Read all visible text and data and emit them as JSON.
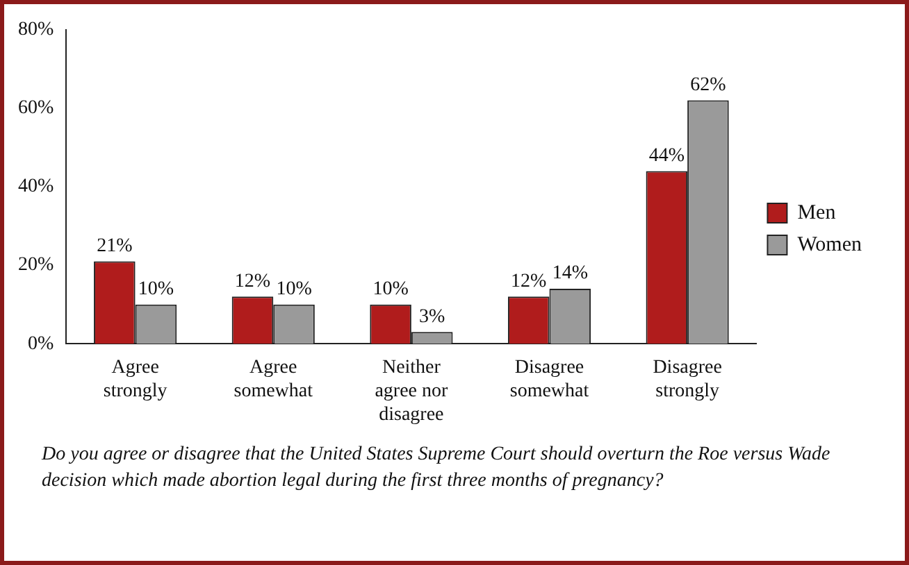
{
  "chart_data": {
    "type": "bar",
    "categories": [
      "Agree strongly",
      "Agree somewhat",
      "Neither agree nor disagree",
      "Disagree somewhat",
      "Disagree strongly"
    ],
    "series": [
      {
        "name": "Men",
        "color": "#b01c1c",
        "values": [
          21,
          12,
          10,
          12,
          44
        ],
        "value_labels": [
          "21%",
          "12%",
          "10%",
          "12%",
          "44%"
        ]
      },
      {
        "name": "Women",
        "color": "#9a9a9a",
        "values": [
          10,
          10,
          3,
          14,
          62
        ],
        "value_labels": [
          "10%",
          "10%",
          "3%",
          "14%",
          "62%"
        ]
      }
    ],
    "ylim": [
      0,
      80
    ],
    "yticks": [
      {
        "value": 0,
        "label": "0%"
      },
      {
        "value": 20,
        "label": "20%"
      },
      {
        "value": 40,
        "label": "40%"
      },
      {
        "value": 60,
        "label": "60%"
      },
      {
        "value": 80,
        "label": "80%"
      }
    ],
    "grid": false,
    "legend": "right",
    "annotations": [
      "Do you agree or disagree that the United States Supreme Court should overturn the Roe versus Wade decision which made abortion legal during the first three months of pregnancy?"
    ]
  }
}
